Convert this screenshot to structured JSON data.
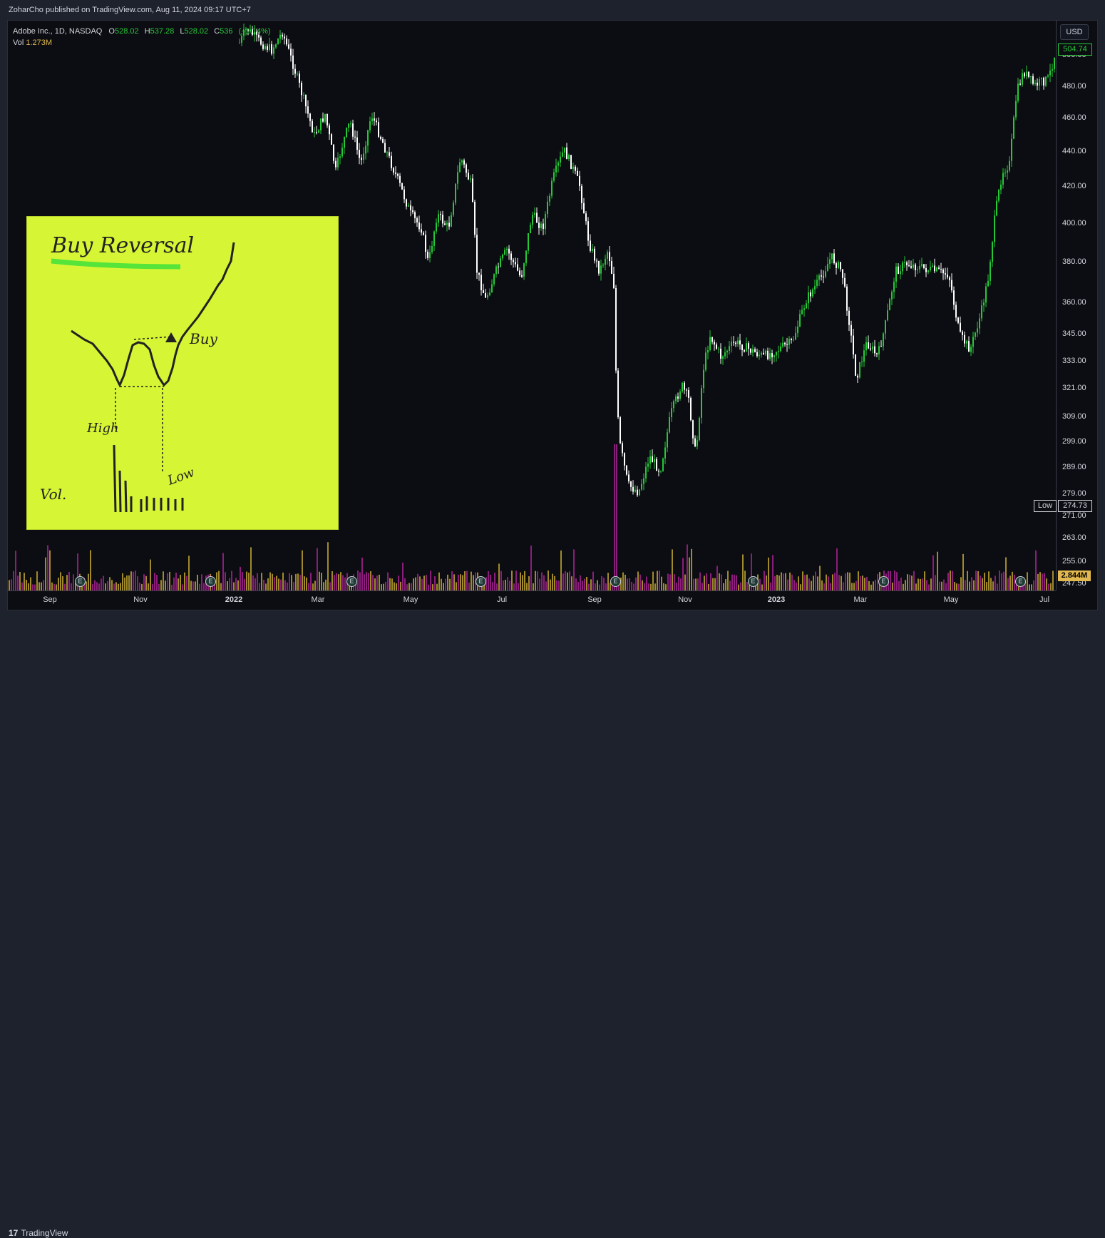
{
  "header": {
    "published": "ZoharCho published on TradingView.com, Aug 11, 2024 09:17 UTC+7"
  },
  "legend": {
    "symbol": "Adobe Inc., 1D, NASDAQ",
    "open_label": "O",
    "open": "528.02",
    "high_label": "H",
    "high": "537.28",
    "low_label": "L",
    "low": "528.02",
    "close_label": "C",
    "close": "536",
    "change": "(+1.14%)",
    "vol_label": "Vol",
    "vol": "1.273M"
  },
  "price_axis": {
    "currency": "USD",
    "ticks": [
      "500.00",
      "480.00",
      "460.00",
      "440.00",
      "420.00",
      "400.00",
      "380.00",
      "360.00",
      "345.00",
      "333.00",
      "321.00",
      "309.00",
      "299.00",
      "289.00",
      "279.00",
      "271.00",
      "263.00",
      "255.00",
      "247.50"
    ],
    "last_price": "504.74",
    "low_label": "Low",
    "low_value": "274.73",
    "volume_value": "2.844M"
  },
  "time_axis": {
    "labels": [
      "Sep",
      "Nov",
      "2022",
      "Mar",
      "May",
      "Jul",
      "Sep",
      "Nov",
      "2023",
      "Mar",
      "May",
      "Jul"
    ]
  },
  "earnings_marker": "E",
  "note": {
    "title": "Buy Reversal",
    "buy": "Buy",
    "high": "High",
    "low": "Low",
    "vol": "Vol."
  },
  "footer": {
    "brand": "TradingView",
    "brand_mark": "17"
  },
  "colors": {
    "up": "#26c837",
    "down": "#ffffff",
    "vol_up": "#a08a2c",
    "vol_down": "#8b1e7a",
    "note": "#d5f535"
  }
}
